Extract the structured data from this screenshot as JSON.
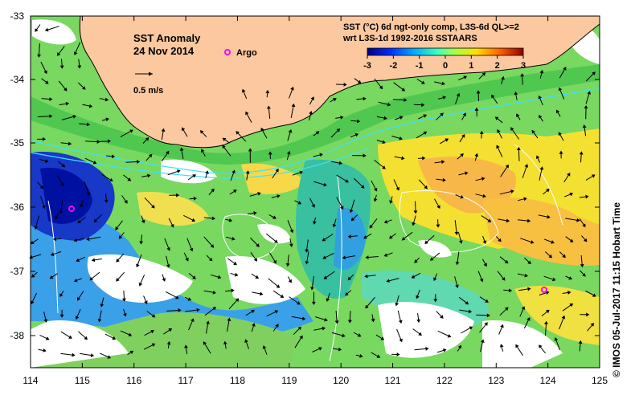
{
  "title": "SST Anomaly",
  "date": "24 Nov 2014",
  "argo_label": "Argo",
  "vector_scale_label": "0.5 m/s",
  "colorbar": {
    "title_line1": "SST (°C) 6d ngt-only comp, L3S-6d QL>=2",
    "title_line2": "wrt L3S-1d 1992-2016 SSTAARS",
    "ticks": [
      "-3",
      "-2",
      "-1",
      "0",
      "1",
      "2",
      "3"
    ]
  },
  "credit": "© IMOS 05-Jul-2017 11:15 Hobart Time",
  "x_ticks": [
    "114",
    "115",
    "116",
    "117",
    "118",
    "119",
    "120",
    "121",
    "122",
    "123",
    "124",
    "125"
  ],
  "y_ticks": [
    "-33",
    "-34",
    "-35",
    "-36",
    "-37",
    "-38"
  ],
  "colors": {
    "land": "#fbc8a0",
    "coast": "#000000",
    "argo": "#ff00ff"
  },
  "argo_floats": [
    {
      "lon": 114.8,
      "lat": -36.02
    },
    {
      "lon": 123.9,
      "lat": -37.3
    }
  ]
}
